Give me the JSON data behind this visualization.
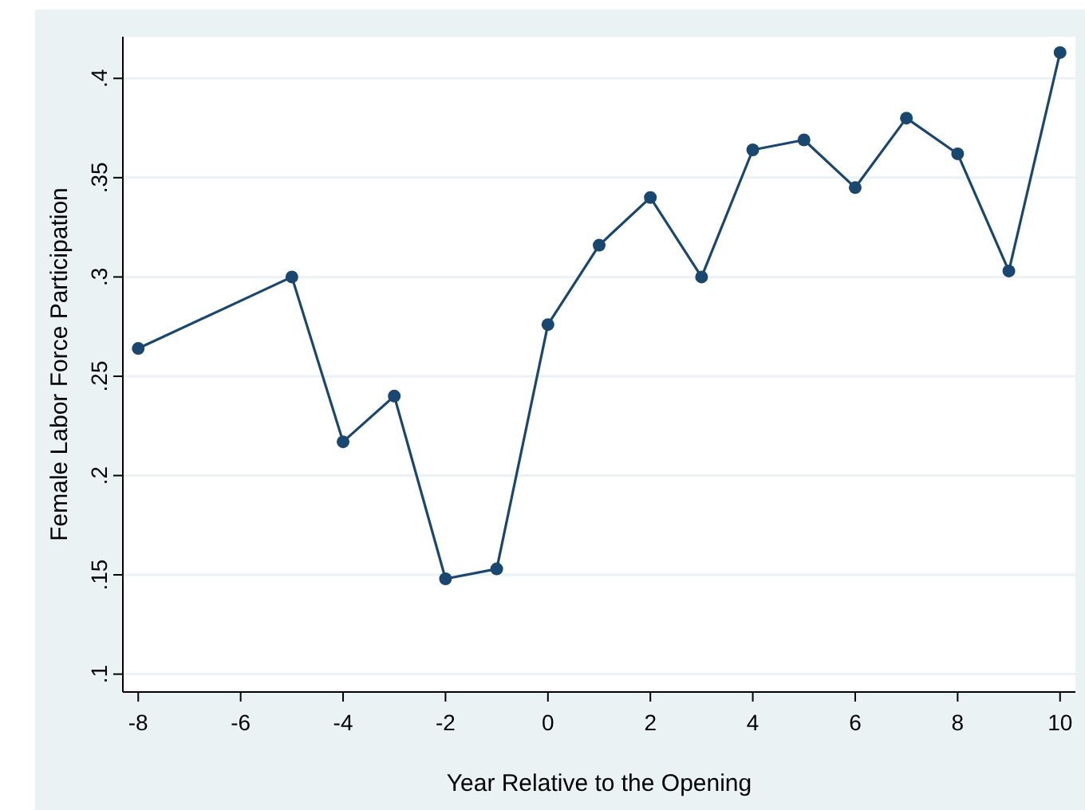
{
  "chart_data": {
    "type": "line",
    "xlabel": "Year Relative to the Opening",
    "ylabel": "Female Labor Force Participation",
    "x": [
      -8,
      -5,
      -4,
      -3,
      -2,
      -1,
      0,
      1,
      2,
      3,
      4,
      5,
      6,
      7,
      8,
      9,
      10
    ],
    "series": [
      {
        "color": "#1a476f",
        "values": [
          0.264,
          0.3,
          0.217,
          0.24,
          0.148,
          0.153,
          0.276,
          0.316,
          0.34,
          0.3,
          0.364,
          0.369,
          0.345,
          0.38,
          0.362,
          0.303,
          0.413
        ]
      }
    ],
    "xlim": [
      -8.3,
      10.3
    ],
    "ylim": [
      0.091,
      0.421
    ],
    "xticks": [
      -8,
      -6,
      -4,
      -2,
      0,
      2,
      4,
      6,
      8,
      10
    ],
    "yticks": [
      {
        "value": 0.1,
        "label": ".1"
      },
      {
        "value": 0.15,
        "label": ".15"
      },
      {
        "value": 0.2,
        "label": ".2"
      },
      {
        "value": 0.25,
        "label": ".25"
      },
      {
        "value": 0.3,
        "label": ".3"
      },
      {
        "value": 0.35,
        "label": ".35"
      },
      {
        "value": 0.4,
        "label": ".4"
      }
    ],
    "grid": "y",
    "marker": "circle"
  }
}
